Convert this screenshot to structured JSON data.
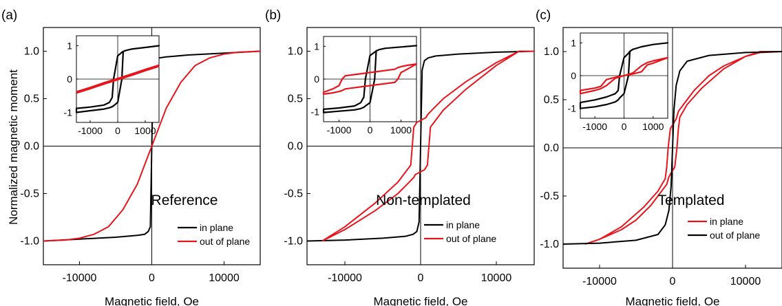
{
  "figure": {
    "ylabel_shared": "Normalized magnetic moment"
  },
  "chart_data": [
    {
      "type": "line",
      "panel_label": "(a)",
      "title": "Reference",
      "xlabel": "Magnetic field, Oe",
      "ylabel": "Normalized magnetic moment",
      "xlim": [
        -15000,
        15000
      ],
      "ylim": [
        -1.25,
        1.25
      ],
      "x_ticks": [
        -10000,
        0,
        10000
      ],
      "y_ticks": [
        -1.0,
        -0.5,
        0.0,
        0.5,
        1.0
      ],
      "x_tick_labels": [
        "-10000",
        "0",
        "10000"
      ],
      "y_tick_labels": [
        "-1.0",
        "-0.5",
        "0.0",
        "0.5",
        "1.0"
      ],
      "legend_position": "lower-right",
      "series": [
        {
          "name": "in plane",
          "color": "#000000",
          "x": [
            -15000,
            -10000,
            -5000,
            -2000,
            -1000,
            -500,
            -200,
            0,
            200,
            500,
            1000,
            2000,
            5000,
            10000,
            15000
          ],
          "y": [
            -1.0,
            -0.98,
            -0.96,
            -0.94,
            -0.93,
            -0.9,
            -0.85,
            0.0,
            0.85,
            0.9,
            0.93,
            0.94,
            0.96,
            0.98,
            1.0
          ]
        },
        {
          "name": "out of plane",
          "color": "#e8141c",
          "x": [
            -15000,
            -12000,
            -10000,
            -8000,
            -6000,
            -4000,
            -2000,
            0,
            2000,
            4000,
            6000,
            8000,
            10000,
            12000,
            15000
          ],
          "y": [
            -1.0,
            -0.99,
            -0.97,
            -0.93,
            -0.85,
            -0.67,
            -0.4,
            0.0,
            0.4,
            0.67,
            0.85,
            0.93,
            0.97,
            0.99,
            1.0
          ]
        }
      ],
      "inset": {
        "xlim": [
          -1500,
          1500
        ],
        "ylim": [
          -1.3,
          1.3
        ],
        "x_ticks": [
          -1000,
          0,
          1000
        ],
        "y_ticks": [
          -1,
          0,
          1
        ],
        "x_tick_labels": [
          "-1000",
          "0",
          "1000"
        ],
        "y_tick_labels": [
          "-1",
          "0",
          "1"
        ],
        "series": [
          {
            "color": "#000000",
            "closed": true,
            "x": [
              -1500,
              -1000,
              -500,
              -300,
              -200,
              -150,
              0,
              150,
              200,
              300,
              500,
              1000,
              1500,
              1000,
              500,
              300,
              200,
              150,
              0,
              -150,
              -200,
              -300,
              -500,
              -1000,
              -1500
            ],
            "y": [
              -0.88,
              -0.84,
              -0.78,
              -0.7,
              -0.55,
              0.0,
              0.7,
              0.8,
              0.83,
              0.86,
              0.9,
              0.95,
              1.0,
              0.95,
              0.9,
              0.86,
              0.83,
              0.0,
              -0.7,
              -0.8,
              -0.83,
              -0.86,
              -0.9,
              -0.95,
              -1.0
            ]
          },
          {
            "color": "#e8141c",
            "closed": false,
            "x": [
              -1500,
              -1000,
              -500,
              0,
              500,
              1000,
              1500
            ],
            "y": [
              -0.4,
              -0.27,
              -0.13,
              0.0,
              0.13,
              0.27,
              0.4
            ]
          }
        ]
      }
    },
    {
      "type": "line",
      "panel_label": "(b)",
      "title": "Non-templated",
      "xlabel": "Magnetic field, Oe",
      "xlim": [
        -15000,
        15000
      ],
      "ylim": [
        -1.25,
        1.25
      ],
      "x_ticks": [
        -10000,
        0,
        10000
      ],
      "y_ticks": [
        -1.0,
        -0.5,
        0.0,
        0.5,
        1.0
      ],
      "x_tick_labels": [
        "-10000",
        "0",
        "10000"
      ],
      "y_tick_labels": [
        "-1.0",
        "-0.5",
        "0.0",
        "0.5",
        "1.0"
      ],
      "legend_position": "lower-right",
      "series": [
        {
          "name": "in plane",
          "color": "#000000",
          "x": [
            -15000,
            -10000,
            -5000,
            -2000,
            -1000,
            -500,
            -200,
            0,
            200,
            500,
            1000,
            2000,
            5000,
            10000,
            15000
          ],
          "y": [
            -1.0,
            -0.99,
            -0.97,
            -0.95,
            -0.93,
            -0.9,
            -0.8,
            0.0,
            0.8,
            0.9,
            0.93,
            0.95,
            0.97,
            0.99,
            1.0
          ]
        },
        {
          "name": "out of plane",
          "color": "#e8141c",
          "x": [
            -13000,
            -10000,
            -6000,
            -3000,
            -1500,
            -900,
            -700,
            500,
            900,
            1100,
            1300,
            3000,
            6000,
            10000,
            13000,
            15000,
            13000,
            10000,
            6000,
            3000,
            1500,
            900,
            700,
            -500,
            -900,
            -1100,
            -1300,
            -3000,
            -6000,
            -10000,
            -13000
          ],
          "y": [
            -1.0,
            -0.88,
            -0.68,
            -0.5,
            -0.38,
            -0.33,
            -0.3,
            -0.25,
            -0.2,
            0.0,
            0.2,
            0.38,
            0.6,
            0.85,
            1.0,
            1.0,
            1.0,
            0.88,
            0.68,
            0.5,
            0.38,
            0.33,
            0.3,
            0.25,
            0.2,
            0.0,
            -0.2,
            -0.38,
            -0.6,
            -0.85,
            -1.0
          ]
        }
      ],
      "inset": {
        "xlim": [
          -1500,
          1500
        ],
        "ylim": [
          -1.3,
          1.3
        ],
        "x_ticks": [
          -1000,
          0,
          1000
        ],
        "y_ticks": [
          -1,
          0,
          1
        ],
        "x_tick_labels": [
          "-1000",
          "0",
          "1000"
        ],
        "y_tick_labels": [
          "-1",
          "0",
          "1"
        ],
        "series": [
          {
            "color": "#000000",
            "closed": true,
            "x": [
              -1500,
              -1000,
              -500,
              -300,
              -200,
              -150,
              0,
              150,
              200,
              300,
              500,
              1000,
              1500,
              1000,
              500,
              300,
              200,
              150,
              0,
              -150,
              -200,
              -300,
              -500,
              -1000,
              -1500
            ],
            "y": [
              -0.92,
              -0.88,
              -0.82,
              -0.72,
              -0.55,
              0.0,
              0.72,
              0.82,
              0.86,
              0.9,
              0.94,
              0.98,
              1.02,
              0.98,
              0.94,
              0.9,
              0.86,
              0.0,
              -0.72,
              -0.82,
              -0.86,
              -0.9,
              -0.94,
              -0.98,
              -1.02
            ]
          },
          {
            "color": "#e8141c",
            "closed": true,
            "x": [
              -1500,
              -1200,
              -1000,
              -900,
              -800,
              0,
              800,
              900,
              1000,
              1200,
              1500,
              1200,
              1000,
              900,
              800,
              0,
              -800,
              -900,
              -1000,
              -1200,
              -1500
            ],
            "y": [
              -0.4,
              -0.3,
              -0.2,
              0.0,
              0.1,
              0.2,
              0.3,
              0.35,
              0.38,
              0.42,
              0.46,
              0.3,
              0.2,
              0.0,
              -0.1,
              -0.2,
              -0.3,
              -0.35,
              -0.38,
              -0.42,
              -0.46
            ]
          }
        ]
      }
    },
    {
      "type": "line",
      "panel_label": "(c)",
      "title": "Templated",
      "xlabel": "Magnetic field, Oe",
      "xlim": [
        -15000,
        15000
      ],
      "ylim": [
        -1.25,
        1.25
      ],
      "x_ticks": [
        -10000,
        0,
        10000
      ],
      "y_ticks": [
        -1.0,
        -0.5,
        0.0,
        0.5,
        1.0
      ],
      "x_tick_labels": [
        "-10000",
        "0",
        "10000"
      ],
      "y_tick_labels": [
        "-1.0",
        "-0.5",
        "0.0",
        "0.5",
        "1.0"
      ],
      "legend_position": "lower-right",
      "series": [
        {
          "name": "in plane",
          "color": "#e8141c",
          "x": [
            -12000,
            -10000,
            -7000,
            -5000,
            -3000,
            -1500,
            -800,
            -500,
            300,
            600,
            800,
            1000,
            2000,
            4000,
            7000,
            10000,
            12000,
            15000,
            12000,
            10000,
            7000,
            5000,
            3000,
            1500,
            800,
            500,
            -300,
            -600,
            -800,
            -1000,
            -2000,
            -4000,
            -7000,
            -10000,
            -12000
          ],
          "y": [
            -1.0,
            -0.95,
            -0.85,
            -0.75,
            -0.6,
            -0.45,
            -0.38,
            -0.3,
            -0.2,
            0.0,
            0.2,
            0.32,
            0.45,
            0.62,
            0.82,
            0.95,
            0.99,
            1.0,
            1.0,
            0.95,
            0.85,
            0.75,
            0.6,
            0.45,
            0.38,
            0.3,
            0.2,
            0.0,
            -0.2,
            -0.32,
            -0.45,
            -0.62,
            -0.82,
            -0.95,
            -1.0
          ]
        },
        {
          "name": "out of plane",
          "color": "#000000",
          "x": [
            -15000,
            -10000,
            -5000,
            -2000,
            -1000,
            -500,
            -200,
            0,
            200,
            500,
            1000,
            2000,
            5000,
            10000,
            15000
          ],
          "y": [
            -1.0,
            -0.99,
            -0.96,
            -0.9,
            -0.8,
            -0.65,
            -0.4,
            0.0,
            0.4,
            0.65,
            0.8,
            0.9,
            0.96,
            0.99,
            1.0
          ]
        }
      ],
      "inset": {
        "xlim": [
          -1500,
          1500
        ],
        "ylim": [
          -1.3,
          1.3
        ],
        "x_ticks": [
          -1000,
          0,
          1000
        ],
        "y_ticks": [
          -1,
          0,
          1
        ],
        "x_tick_labels": [
          "-1000",
          "0",
          "1000"
        ],
        "y_tick_labels": [
          "-1",
          "0",
          "1"
        ],
        "series": [
          {
            "color": "#000000",
            "closed": true,
            "x": [
              -1500,
              -1000,
              -600,
              -300,
              -200,
              -150,
              0,
              150,
              200,
              300,
              600,
              1000,
              1500,
              1000,
              600,
              300,
              200,
              150,
              0,
              -150,
              -200,
              -300,
              -600,
              -1000,
              -1500
            ],
            "y": [
              -0.82,
              -0.74,
              -0.65,
              -0.55,
              -0.45,
              0.0,
              0.55,
              0.68,
              0.74,
              0.8,
              0.88,
              0.95,
              1.0,
              0.95,
              0.88,
              0.8,
              0.74,
              0.0,
              -0.55,
              -0.68,
              -0.74,
              -0.8,
              -0.88,
              -0.95,
              -1.0
            ]
          },
          {
            "color": "#e8141c",
            "closed": true,
            "x": [
              -1500,
              -1000,
              -800,
              -600,
              -300,
              0,
              300,
              600,
              800,
              1000,
              1500,
              1000,
              800,
              600,
              300,
              0,
              -300,
              -600,
              -800,
              -1000,
              -1500
            ],
            "y": [
              -0.45,
              -0.38,
              -0.33,
              -0.12,
              -0.05,
              0.0,
              0.08,
              0.3,
              0.4,
              0.45,
              0.55,
              0.38,
              0.33,
              0.12,
              0.05,
              0.0,
              -0.08,
              -0.3,
              -0.4,
              -0.45,
              -0.55
            ]
          }
        ]
      }
    }
  ]
}
